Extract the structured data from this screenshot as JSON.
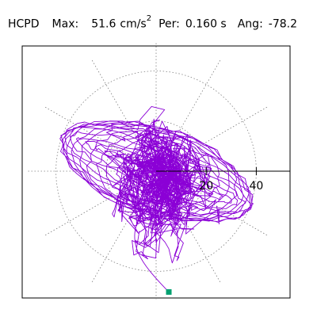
{
  "header": {
    "label": "HCPD",
    "max_label": "Max:",
    "max_value": "51.6",
    "unit_base": "cm/s",
    "unit_exp": "2",
    "per_label": "Per:",
    "per_value": "0.160 s",
    "ang_label": "Ang:",
    "ang_value": "-78.2"
  },
  "chart_data": {
    "type": "polar-orbit",
    "ring_values": [
      20,
      40
    ],
    "r_max": 51.6,
    "major_angle_deg": -78.2,
    "grid": "dotted",
    "colors": {
      "trace": "#8b00d6",
      "marker": "#00a070",
      "axis": "#000000",
      "grid": "#808080"
    },
    "axis_tick_labels": [
      "20",
      "40"
    ],
    "end_marker": {
      "r": 48.5,
      "theta_deg": -84
    }
  }
}
